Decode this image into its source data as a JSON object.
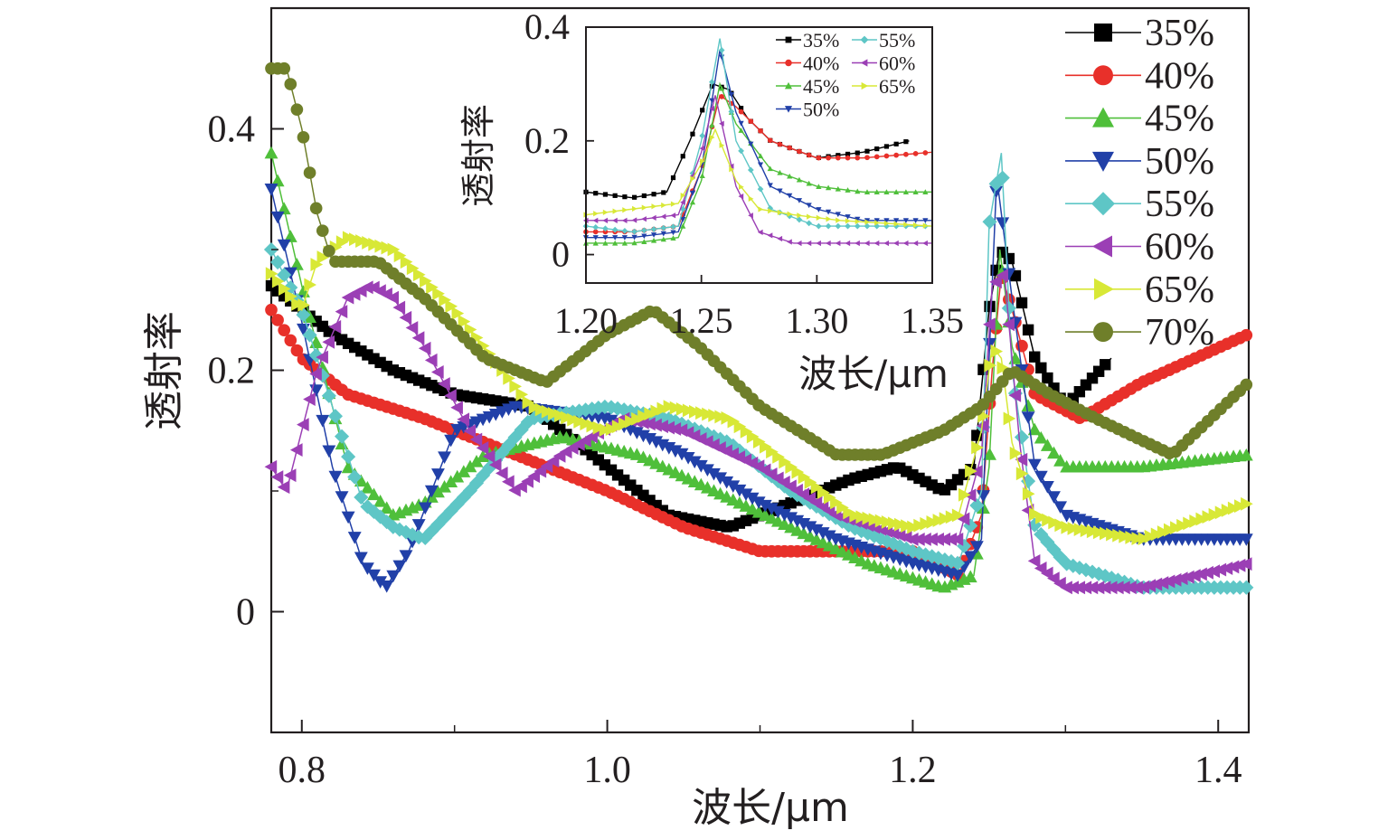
{
  "chart_data": [
    {
      "type": "line",
      "xlabel": "波长/μm",
      "ylabel": "透射率",
      "xlim": [
        0.78,
        1.42
      ],
      "ylim": [
        -0.1,
        0.5
      ],
      "xticks": [
        "0.8",
        "1.0",
        "1.2",
        "1.4"
      ],
      "yticks": [
        "0",
        "0.2",
        "0.4"
      ],
      "legend_position": "right",
      "series": [
        {
          "name": "35%",
          "color": "#000000",
          "marker": "square",
          "x": [
            0.78,
            0.82,
            0.86,
            0.9,
            0.95,
            1.0,
            1.04,
            1.08,
            1.12,
            1.16,
            1.19,
            1.22,
            1.24,
            1.25,
            1.257,
            1.265,
            1.28,
            1.3,
            1.33
          ],
          "y": [
            0.27,
            0.23,
            0.2,
            0.18,
            0.17,
            0.12,
            0.08,
            0.07,
            0.09,
            0.11,
            0.12,
            0.1,
            0.12,
            0.25,
            0.3,
            0.29,
            0.21,
            0.17,
            0.21
          ]
        },
        {
          "name": "40%",
          "color": "#e8302a",
          "marker": "circle",
          "x": [
            0.78,
            0.8,
            0.83,
            0.88,
            0.94,
            1.0,
            1.05,
            1.1,
            1.15,
            1.2,
            1.23,
            1.245,
            1.252,
            1.258,
            1.265,
            1.28,
            1.31,
            1.35,
            1.42
          ],
          "y": [
            0.25,
            0.21,
            0.18,
            0.16,
            0.13,
            0.1,
            0.07,
            0.05,
            0.05,
            0.05,
            0.03,
            0.08,
            0.2,
            0.28,
            0.25,
            0.18,
            0.16,
            0.19,
            0.23
          ]
        },
        {
          "name": "45%",
          "color": "#4fbf3a",
          "marker": "triangle-up",
          "x": [
            0.78,
            0.8,
            0.83,
            0.86,
            0.88,
            0.92,
            0.97,
            1.02,
            1.07,
            1.12,
            1.17,
            1.22,
            1.24,
            1.25,
            1.257,
            1.265,
            1.28,
            1.3,
            1.35,
            1.42
          ],
          "y": [
            0.38,
            0.27,
            0.12,
            0.08,
            0.09,
            0.13,
            0.145,
            0.13,
            0.1,
            0.07,
            0.04,
            0.02,
            0.03,
            0.12,
            0.3,
            0.22,
            0.15,
            0.12,
            0.12,
            0.13
          ]
        },
        {
          "name": "50%",
          "color": "#2140a8",
          "marker": "triangle-down",
          "x": [
            0.78,
            0.8,
            0.82,
            0.84,
            0.855,
            0.87,
            0.9,
            0.94,
            1.0,
            1.05,
            1.1,
            1.15,
            1.2,
            1.23,
            1.245,
            1.255,
            1.265,
            1.28,
            1.3,
            1.35,
            1.42
          ],
          "y": [
            0.35,
            0.24,
            0.12,
            0.04,
            0.02,
            0.05,
            0.15,
            0.17,
            0.16,
            0.13,
            0.09,
            0.06,
            0.04,
            0.03,
            0.06,
            0.36,
            0.26,
            0.12,
            0.08,
            0.06,
            0.06
          ]
        },
        {
          "name": "55%",
          "color": "#5ec6c6",
          "marker": "diamond",
          "x": [
            0.78,
            0.8,
            0.82,
            0.84,
            0.86,
            0.88,
            0.91,
            0.95,
            1.0,
            1.04,
            1.08,
            1.12,
            1.16,
            1.2,
            1.23,
            1.245,
            1.25,
            1.258,
            1.265,
            1.28,
            1.3,
            1.35,
            1.42
          ],
          "y": [
            0.3,
            0.25,
            0.17,
            0.09,
            0.07,
            0.06,
            0.1,
            0.16,
            0.17,
            0.16,
            0.14,
            0.1,
            0.07,
            0.05,
            0.04,
            0.1,
            0.32,
            0.38,
            0.2,
            0.07,
            0.04,
            0.02,
            0.02
          ]
        },
        {
          "name": "60%",
          "color": "#9b3fb5",
          "marker": "triangle-left",
          "x": [
            0.78,
            0.79,
            0.81,
            0.83,
            0.845,
            0.86,
            0.88,
            0.91,
            0.94,
            0.97,
            1.01,
            1.05,
            1.1,
            1.15,
            1.2,
            1.23,
            1.245,
            1.252,
            1.26,
            1.27,
            1.28,
            1.3,
            1.35,
            1.42
          ],
          "y": [
            0.12,
            0.1,
            0.2,
            0.26,
            0.27,
            0.26,
            0.22,
            0.15,
            0.1,
            0.13,
            0.16,
            0.15,
            0.12,
            0.08,
            0.06,
            0.06,
            0.13,
            0.27,
            0.28,
            0.14,
            0.04,
            0.02,
            0.02,
            0.04
          ]
        },
        {
          "name": "65%",
          "color": "#d8e836",
          "marker": "triangle-right",
          "x": [
            0.78,
            0.8,
            0.81,
            0.83,
            0.86,
            0.9,
            0.95,
            1.0,
            1.04,
            1.08,
            1.12,
            1.16,
            1.2,
            1.23,
            1.245,
            1.252,
            1.258,
            1.265,
            1.28,
            1.3,
            1.35,
            1.42
          ],
          "y": [
            0.28,
            0.25,
            0.29,
            0.31,
            0.3,
            0.25,
            0.17,
            0.15,
            0.17,
            0.16,
            0.12,
            0.08,
            0.07,
            0.08,
            0.15,
            0.22,
            0.21,
            0.14,
            0.08,
            0.07,
            0.06,
            0.09
          ]
        },
        {
          "name": "70%",
          "color": "#6f7f2a",
          "marker": "circle",
          "x": [
            0.78,
            0.79,
            0.8,
            0.81,
            0.82,
            0.83,
            0.85,
            0.88,
            0.92,
            0.96,
            1.0,
            1.03,
            1.06,
            1.1,
            1.15,
            1.18,
            1.22,
            1.245,
            1.265,
            1.29,
            1.32,
            1.37,
            1.42
          ],
          "y": [
            0.45,
            0.45,
            0.4,
            0.33,
            0.29,
            0.29,
            0.29,
            0.26,
            0.21,
            0.19,
            0.23,
            0.25,
            0.22,
            0.17,
            0.13,
            0.13,
            0.15,
            0.17,
            0.2,
            0.18,
            0.16,
            0.13,
            0.19
          ]
        }
      ]
    },
    {
      "type": "line",
      "xlabel": "波长/μm",
      "ylabel": "透射率",
      "xlim": [
        1.2,
        1.35
      ],
      "ylim": [
        -0.05,
        0.4
      ],
      "xticks": [
        "1.20",
        "1.25",
        "1.30",
        "1.35"
      ],
      "yticks": [
        "0",
        "0.2",
        "0.4"
      ],
      "legend_position": "top",
      "series": [
        {
          "name": "35%",
          "color": "#000000",
          "x": [
            1.2,
            1.22,
            1.235,
            1.245,
            1.255,
            1.262,
            1.27,
            1.28,
            1.3,
            1.32,
            1.34
          ],
          "y": [
            0.11,
            0.1,
            0.11,
            0.2,
            0.3,
            0.29,
            0.24,
            0.2,
            0.17,
            0.18,
            0.2
          ]
        },
        {
          "name": "40%",
          "color": "#e8302a",
          "x": [
            1.2,
            1.22,
            1.24,
            1.25,
            1.258,
            1.265,
            1.28,
            1.3,
            1.32,
            1.35
          ],
          "y": [
            0.04,
            0.04,
            0.05,
            0.15,
            0.28,
            0.26,
            0.2,
            0.17,
            0.17,
            0.18
          ]
        },
        {
          "name": "45%",
          "color": "#4fbf3a",
          "x": [
            1.2,
            1.22,
            1.24,
            1.25,
            1.258,
            1.265,
            1.28,
            1.3,
            1.32,
            1.35
          ],
          "y": [
            0.02,
            0.02,
            0.03,
            0.13,
            0.3,
            0.23,
            0.15,
            0.12,
            0.11,
            0.11
          ]
        },
        {
          "name": "50%",
          "color": "#2140a8",
          "x": [
            1.2,
            1.22,
            1.24,
            1.25,
            1.258,
            1.265,
            1.28,
            1.3,
            1.32,
            1.35
          ],
          "y": [
            0.03,
            0.03,
            0.04,
            0.15,
            0.36,
            0.25,
            0.12,
            0.08,
            0.06,
            0.06
          ]
        },
        {
          "name": "55%",
          "color": "#5ec6c6",
          "x": [
            1.2,
            1.22,
            1.24,
            1.25,
            1.258,
            1.265,
            1.28,
            1.3,
            1.32,
            1.35
          ],
          "y": [
            0.05,
            0.04,
            0.05,
            0.2,
            0.38,
            0.2,
            0.08,
            0.05,
            0.05,
            0.05
          ]
        },
        {
          "name": "60%",
          "color": "#9b3fb5",
          "x": [
            1.2,
            1.22,
            1.24,
            1.25,
            1.256,
            1.265,
            1.275,
            1.29,
            1.31,
            1.35
          ],
          "y": [
            0.06,
            0.06,
            0.07,
            0.18,
            0.28,
            0.12,
            0.04,
            0.02,
            0.02,
            0.02
          ]
        },
        {
          "name": "65%",
          "color": "#d8e836",
          "x": [
            1.2,
            1.22,
            1.24,
            1.25,
            1.256,
            1.265,
            1.275,
            1.29,
            1.31,
            1.35
          ],
          "y": [
            0.07,
            0.08,
            0.09,
            0.16,
            0.22,
            0.13,
            0.08,
            0.07,
            0.06,
            0.05
          ]
        }
      ]
    }
  ]
}
